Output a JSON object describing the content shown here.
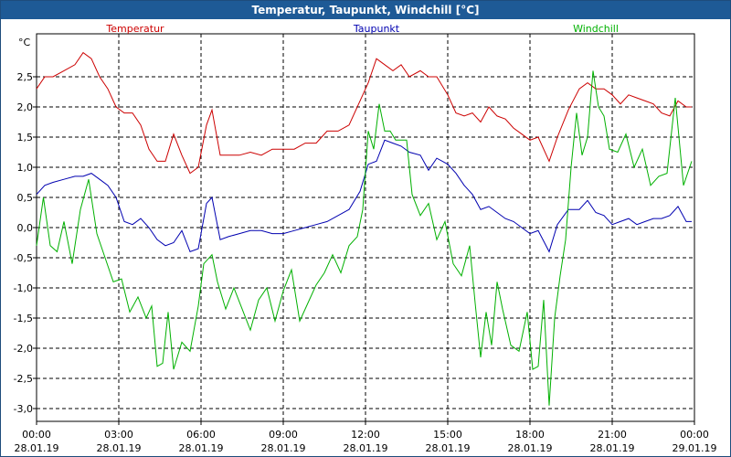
{
  "title": "Temperatur, Taupunkt, Windchill [°C]",
  "chart_data": {
    "type": "line",
    "title": "Temperatur, Taupunkt, Windchill [°C]",
    "ylabel": "°C",
    "ylim": [
      -3.2,
      3.0
    ],
    "yticks": [
      2.5,
      2.0,
      1.5,
      1.0,
      0.5,
      0.0,
      -0.5,
      -1.0,
      -1.5,
      -2.0,
      -2.5,
      -3.0
    ],
    "ytick_labels": [
      "2,5",
      "2,0",
      "1,5",
      "1,0",
      "0,5",
      "0,0",
      "-0,5",
      "-1,0",
      "-1,5",
      "-2,0",
      "-2,5",
      "-3,0"
    ],
    "xlim_hours": [
      0,
      24
    ],
    "xticks": [
      {
        "h": 0,
        "time": "00:00",
        "date": "28.01.19"
      },
      {
        "h": 3,
        "time": "03:00",
        "date": "28.01.19"
      },
      {
        "h": 6,
        "time": "06:00",
        "date": "28.01.19"
      },
      {
        "h": 9,
        "time": "09:00",
        "date": "28.01.19"
      },
      {
        "h": 12,
        "time": "12:00",
        "date": "28.01.19"
      },
      {
        "h": 15,
        "time": "15:00",
        "date": "28.01.19"
      },
      {
        "h": 18,
        "time": "18:00",
        "date": "28.01.19"
      },
      {
        "h": 21,
        "time": "21:00",
        "date": "28.01.19"
      },
      {
        "h": 24,
        "time": "00:00",
        "date": "29.01.19"
      }
    ],
    "grid": true,
    "series": [
      {
        "name": "Temperatur",
        "color": "#cc0000",
        "x": [
          0,
          0.3,
          0.6,
          1.0,
          1.4,
          1.7,
          2.0,
          2.3,
          2.6,
          2.9,
          3.2,
          3.5,
          3.8,
          4.1,
          4.4,
          4.7,
          5.0,
          5.3,
          5.6,
          5.9,
          6.2,
          6.4,
          6.7,
          7.0,
          7.4,
          7.8,
          8.2,
          8.6,
          9.0,
          9.4,
          9.8,
          10.2,
          10.6,
          11.0,
          11.4,
          11.8,
          12.1,
          12.4,
          12.7,
          13.0,
          13.3,
          13.6,
          14.0,
          14.3,
          14.6,
          15.0,
          15.3,
          15.6,
          15.9,
          16.2,
          16.5,
          16.8,
          17.1,
          17.4,
          17.7,
          18.0,
          18.3,
          18.7,
          19.0,
          19.4,
          19.8,
          20.1,
          20.4,
          20.7,
          21.0,
          21.3,
          21.6,
          21.9,
          22.2,
          22.5,
          22.8,
          23.1,
          23.4,
          23.7,
          23.9
        ],
        "values": [
          2.3,
          2.5,
          2.5,
          2.6,
          2.7,
          2.9,
          2.8,
          2.5,
          2.3,
          2.0,
          1.9,
          1.9,
          1.7,
          1.3,
          1.1,
          1.1,
          1.55,
          1.2,
          0.9,
          1.0,
          1.7,
          1.95,
          1.2,
          1.2,
          1.2,
          1.25,
          1.2,
          1.3,
          1.3,
          1.3,
          1.4,
          1.4,
          1.6,
          1.6,
          1.7,
          2.1,
          2.4,
          2.8,
          2.7,
          2.6,
          2.7,
          2.5,
          2.6,
          2.5,
          2.5,
          2.2,
          1.9,
          1.85,
          1.9,
          1.75,
          2.0,
          1.85,
          1.8,
          1.65,
          1.55,
          1.45,
          1.5,
          1.1,
          1.5,
          1.95,
          2.3,
          2.4,
          2.3,
          2.3,
          2.2,
          2.05,
          2.2,
          2.15,
          2.1,
          2.05,
          1.9,
          1.85,
          2.1,
          2.0,
          2.0
        ]
      },
      {
        "name": "Taupunkt",
        "color": "#0000b0",
        "x": [
          0,
          0.3,
          0.6,
          1.0,
          1.4,
          1.7,
          2.0,
          2.3,
          2.6,
          2.9,
          3.2,
          3.5,
          3.8,
          4.1,
          4.4,
          4.7,
          5.0,
          5.3,
          5.6,
          5.9,
          6.2,
          6.4,
          6.7,
          7.0,
          7.4,
          7.8,
          8.2,
          8.6,
          9.0,
          9.4,
          9.8,
          10.2,
          10.6,
          11.0,
          11.4,
          11.8,
          12.1,
          12.4,
          12.7,
          13.0,
          13.3,
          13.6,
          14.0,
          14.3,
          14.6,
          15.0,
          15.3,
          15.6,
          15.9,
          16.2,
          16.5,
          16.8,
          17.1,
          17.4,
          17.7,
          18.0,
          18.3,
          18.7,
          19.0,
          19.4,
          19.8,
          20.1,
          20.4,
          20.7,
          21.0,
          21.3,
          21.6,
          21.9,
          22.2,
          22.5,
          22.8,
          23.1,
          23.4,
          23.7,
          23.9
        ],
        "values": [
          0.55,
          0.7,
          0.75,
          0.8,
          0.85,
          0.85,
          0.9,
          0.8,
          0.7,
          0.5,
          0.1,
          0.05,
          0.15,
          0.0,
          -0.2,
          -0.3,
          -0.25,
          -0.05,
          -0.4,
          -0.35,
          0.4,
          0.5,
          -0.2,
          -0.15,
          -0.1,
          -0.05,
          -0.05,
          -0.1,
          -0.1,
          -0.05,
          0.0,
          0.05,
          0.1,
          0.2,
          0.3,
          0.6,
          1.05,
          1.1,
          1.45,
          1.4,
          1.35,
          1.25,
          1.2,
          0.95,
          1.15,
          1.05,
          0.9,
          0.7,
          0.55,
          0.3,
          0.35,
          0.25,
          0.15,
          0.1,
          0.0,
          -0.1,
          -0.05,
          -0.4,
          0.05,
          0.3,
          0.3,
          0.45,
          0.25,
          0.2,
          0.05,
          0.1,
          0.15,
          0.05,
          0.1,
          0.15,
          0.15,
          0.2,
          0.35,
          0.1,
          0.1
        ]
      },
      {
        "name": "Windchill",
        "color": "#00b000",
        "x": [
          0,
          0.25,
          0.5,
          0.75,
          1.0,
          1.3,
          1.6,
          1.9,
          2.2,
          2.5,
          2.8,
          3.1,
          3.4,
          3.7,
          4.0,
          4.2,
          4.4,
          4.6,
          4.8,
          5.0,
          5.3,
          5.6,
          5.9,
          6.1,
          6.4,
          6.6,
          6.9,
          7.2,
          7.5,
          7.8,
          8.1,
          8.4,
          8.7,
          9.0,
          9.3,
          9.6,
          9.9,
          10.2,
          10.5,
          10.8,
          11.1,
          11.4,
          11.7,
          11.9,
          12.1,
          12.3,
          12.5,
          12.7,
          12.9,
          13.1,
          13.3,
          13.5,
          13.7,
          14.0,
          14.3,
          14.6,
          14.9,
          15.2,
          15.5,
          15.8,
          16.0,
          16.2,
          16.4,
          16.6,
          16.8,
          17.0,
          17.3,
          17.6,
          17.9,
          18.1,
          18.3,
          18.5,
          18.7,
          18.9,
          19.1,
          19.3,
          19.5,
          19.7,
          19.9,
          20.1,
          20.3,
          20.5,
          20.7,
          20.9,
          21.2,
          21.5,
          21.8,
          22.1,
          22.4,
          22.7,
          23.0,
          23.3,
          23.6,
          23.9
        ],
        "values": [
          -0.3,
          0.5,
          -0.3,
          -0.4,
          0.1,
          -0.6,
          0.3,
          0.8,
          -0.1,
          -0.5,
          -0.9,
          -0.85,
          -1.4,
          -1.15,
          -1.5,
          -1.3,
          -2.3,
          -2.25,
          -1.4,
          -2.35,
          -1.9,
          -2.05,
          -1.3,
          -0.6,
          -0.45,
          -0.9,
          -1.35,
          -1.0,
          -1.35,
          -1.7,
          -1.2,
          -1.0,
          -1.55,
          -1.05,
          -0.7,
          -1.55,
          -1.25,
          -0.95,
          -0.75,
          -0.45,
          -0.75,
          -0.3,
          -0.15,
          0.3,
          1.6,
          1.3,
          2.05,
          1.6,
          1.6,
          1.45,
          1.45,
          1.45,
          0.55,
          0.2,
          0.4,
          -0.2,
          0.1,
          -0.6,
          -0.8,
          -0.3,
          -1.25,
          -2.15,
          -1.4,
          -1.95,
          -0.9,
          -1.35,
          -1.95,
          -2.05,
          -1.4,
          -2.35,
          -2.3,
          -1.2,
          -2.95,
          -1.5,
          -0.8,
          -0.2,
          1.0,
          1.9,
          1.2,
          1.5,
          2.6,
          2.0,
          1.85,
          1.3,
          1.25,
          1.55,
          1.0,
          1.3,
          0.7,
          0.85,
          0.9,
          2.15,
          0.7,
          1.1
        ]
      }
    ]
  }
}
